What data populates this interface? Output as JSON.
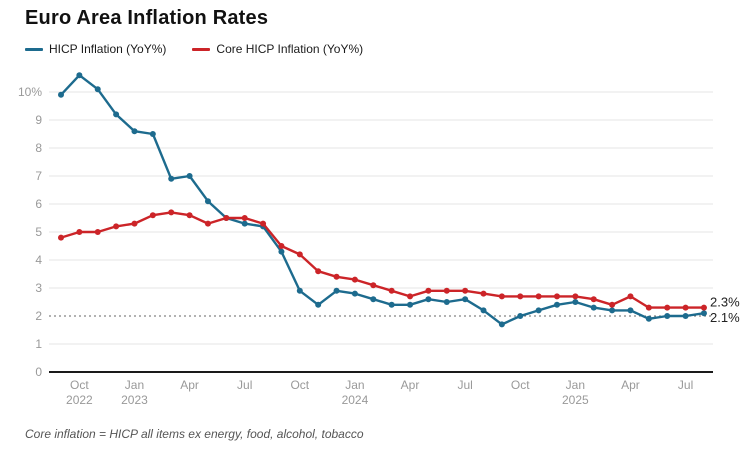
{
  "title": "Euro Area Inflation Rates",
  "legend": {
    "items": [
      {
        "label": "HICP Inflation (YoY%)",
        "color": "#1d6b8e"
      },
      {
        "label": "Core HICP Inflation (YoY%)",
        "color": "#cc2428"
      }
    ]
  },
  "footnote": "Core inflation = HICP all items ex energy, food, alcohol, tobacco",
  "colors": {
    "hicp_line": "#1d6b8e",
    "core_line": "#cc2428",
    "gridline": "#e5e5e5",
    "target_line": "#666666",
    "axis_line": "#1a1a1a",
    "tick_label": "#999999",
    "end_label": "#222222"
  },
  "chart_data": {
    "type": "line",
    "title": "Euro Area Inflation Rates",
    "xlabel": "",
    "ylabel": "",
    "ylim": [
      0,
      10.9
    ],
    "grid": true,
    "legend_position": "top-left",
    "target_line": {
      "value": 2,
      "style": "dotted"
    },
    "x": [
      "Sep 2022",
      "Oct 2022",
      "Nov 2022",
      "Dec 2022",
      "Jan 2023",
      "Feb 2023",
      "Mar 2023",
      "Apr 2023",
      "May 2023",
      "Jun 2023",
      "Jul 2023",
      "Aug 2023",
      "Sep 2023",
      "Oct 2023",
      "Nov 2023",
      "Dec 2023",
      "Jan 2024",
      "Feb 2024",
      "Mar 2024",
      "Apr 2024",
      "May 2024",
      "Jun 2024",
      "Jul 2024",
      "Aug 2024",
      "Sep 2024",
      "Oct 2024",
      "Nov 2024",
      "Dec 2024",
      "Jan 2025",
      "Feb 2025",
      "Mar 2025",
      "Apr 2025",
      "May 2025",
      "Jun 2025",
      "Jul 2025",
      "Aug 2025"
    ],
    "series": [
      {
        "name": "HICP Inflation (YoY%)",
        "color": "#1d6b8e",
        "end_label": "2.1%",
        "values": [
          9.9,
          10.6,
          10.1,
          9.2,
          8.6,
          8.5,
          6.9,
          7.0,
          6.1,
          5.5,
          5.3,
          5.2,
          4.3,
          2.9,
          2.4,
          2.9,
          2.8,
          2.6,
          2.4,
          2.4,
          2.6,
          2.5,
          2.6,
          2.2,
          1.7,
          2.0,
          2.2,
          2.4,
          2.5,
          2.3,
          2.2,
          2.2,
          1.9,
          2.0,
          2.0,
          2.1
        ]
      },
      {
        "name": "Core HICP Inflation (YoY%)",
        "color": "#cc2428",
        "end_label": "2.3%",
        "values": [
          4.8,
          5.0,
          5.0,
          5.2,
          5.3,
          5.6,
          5.7,
          5.6,
          5.3,
          5.5,
          5.5,
          5.3,
          4.5,
          4.2,
          3.6,
          3.4,
          3.3,
          3.1,
          2.9,
          2.7,
          2.9,
          2.9,
          2.9,
          2.8,
          2.7,
          2.7,
          2.7,
          2.7,
          2.7,
          2.6,
          2.4,
          2.7,
          2.3,
          2.3,
          2.3,
          2.3
        ]
      }
    ],
    "yticks": [
      {
        "v": 0,
        "label": "0"
      },
      {
        "v": 1,
        "label": "1"
      },
      {
        "v": 2,
        "label": "2"
      },
      {
        "v": 3,
        "label": "3"
      },
      {
        "v": 4,
        "label": "4"
      },
      {
        "v": 5,
        "label": "5"
      },
      {
        "v": 6,
        "label": "6"
      },
      {
        "v": 7,
        "label": "7"
      },
      {
        "v": 8,
        "label": "8"
      },
      {
        "v": 9,
        "label": "9"
      },
      {
        "v": 10,
        "label": "10%"
      }
    ],
    "xticks": [
      {
        "i": 1,
        "month": "Oct",
        "year": "2022"
      },
      {
        "i": 4,
        "month": "Jan",
        "year": "2023"
      },
      {
        "i": 7,
        "month": "Apr",
        "year": ""
      },
      {
        "i": 10,
        "month": "Jul",
        "year": ""
      },
      {
        "i": 13,
        "month": "Oct",
        "year": ""
      },
      {
        "i": 16,
        "month": "Jan",
        "year": "2024"
      },
      {
        "i": 19,
        "month": "Apr",
        "year": ""
      },
      {
        "i": 22,
        "month": "Jul",
        "year": ""
      },
      {
        "i": 25,
        "month": "Oct",
        "year": ""
      },
      {
        "i": 28,
        "month": "Jan",
        "year": "2025"
      },
      {
        "i": 31,
        "month": "Apr",
        "year": ""
      },
      {
        "i": 34,
        "month": "Jul",
        "year": ""
      }
    ]
  }
}
